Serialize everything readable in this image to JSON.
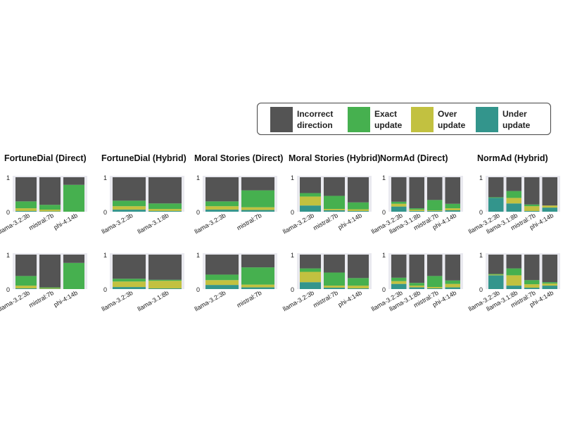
{
  "legend": {
    "placement": "top-right",
    "items": [
      {
        "label": "Incorrect\ndirection",
        "color": "#545454"
      },
      {
        "label": "Exact\nupdate",
        "color": "#46b04f"
      },
      {
        "label": "Over\nupdate",
        "color": "#c2c140"
      },
      {
        "label": "Under\nupdate",
        "color": "#33958c"
      }
    ]
  },
  "colors": {
    "incorrect": "#545454",
    "exact": "#46b04f",
    "over": "#c2c140",
    "under": "#33958c",
    "plot_bg": "#e9e9ef"
  },
  "chart_data": [
    {
      "type": "bar",
      "stacked": true,
      "row": 0,
      "col": 0,
      "title": "FortuneDial (Direct)",
      "ylim": [
        0,
        1
      ],
      "yticks": [
        "0",
        "1"
      ],
      "categories": [
        "llama-3.2:3b",
        "mistral:7b",
        "phi-4:14b"
      ],
      "series": [
        {
          "name": "Under update",
          "values": [
            0.02,
            0.01,
            0.0
          ]
        },
        {
          "name": "Over update",
          "values": [
            0.08,
            0.05,
            0.0
          ]
        },
        {
          "name": "Exact update",
          "values": [
            0.2,
            0.14,
            0.78
          ]
        },
        {
          "name": "Incorrect direction",
          "values": [
            0.7,
            0.8,
            0.22
          ]
        }
      ]
    },
    {
      "type": "bar",
      "stacked": true,
      "row": 0,
      "col": 1,
      "title": "FortuneDial (Hybrid)",
      "ylim": [
        0,
        1
      ],
      "yticks": [
        "0",
        "1"
      ],
      "categories": [
        "llama-3.2:3b",
        "llama-3.1:8b"
      ],
      "series": [
        {
          "name": "Under update",
          "values": [
            0.06,
            0.02
          ]
        },
        {
          "name": "Over update",
          "values": [
            0.1,
            0.06
          ]
        },
        {
          "name": "Exact update",
          "values": [
            0.16,
            0.16
          ]
        },
        {
          "name": "Incorrect direction",
          "values": [
            0.68,
            0.76
          ]
        }
      ]
    },
    {
      "type": "bar",
      "stacked": true,
      "row": 0,
      "col": 2,
      "title": "Moral Stories (Direct)",
      "ylim": [
        0,
        1
      ],
      "yticks": [
        "0",
        "1"
      ],
      "categories": [
        "llama-3.2:3b",
        "mistral:7b"
      ],
      "series": [
        {
          "name": "Under update",
          "values": [
            0.06,
            0.05
          ]
        },
        {
          "name": "Over update",
          "values": [
            0.1,
            0.08
          ]
        },
        {
          "name": "Exact update",
          "values": [
            0.14,
            0.49
          ]
        },
        {
          "name": "Incorrect direction",
          "values": [
            0.7,
            0.38
          ]
        }
      ]
    },
    {
      "type": "bar",
      "stacked": true,
      "row": 0,
      "col": 3,
      "title": "Moral Stories (Hybrid)",
      "ylim": [
        0,
        1
      ],
      "yticks": [
        "0",
        "1"
      ],
      "categories": [
        "llama-3.2:3b",
        "mistral:7b",
        "phi-4:14b"
      ],
      "series": [
        {
          "name": "Under update",
          "values": [
            0.18,
            0.04,
            0.02
          ]
        },
        {
          "name": "Over update",
          "values": [
            0.26,
            0.04,
            0.05
          ]
        },
        {
          "name": "Exact update",
          "values": [
            0.1,
            0.38,
            0.2
          ]
        },
        {
          "name": "Incorrect direction",
          "values": [
            0.46,
            0.54,
            0.73
          ]
        }
      ]
    },
    {
      "type": "bar",
      "stacked": true,
      "row": 0,
      "col": 4,
      "title": "NormAd (Direct)",
      "ylim": [
        0,
        1
      ],
      "yticks": [
        "0",
        "1"
      ],
      "categories": [
        "llama-3.2:3b",
        "llama-3.1:8b",
        "mistral:7b",
        "phi-4:14b"
      ],
      "series": [
        {
          "name": "Under update",
          "values": [
            0.15,
            0.02,
            0.02,
            0.04
          ]
        },
        {
          "name": "Over update",
          "values": [
            0.08,
            0.04,
            0.02,
            0.06
          ]
        },
        {
          "name": "Exact update",
          "values": [
            0.06,
            0.04,
            0.3,
            0.13
          ]
        },
        {
          "name": "Incorrect direction",
          "values": [
            0.71,
            0.9,
            0.66,
            0.77
          ]
        }
      ]
    },
    {
      "type": "bar",
      "stacked": true,
      "row": 0,
      "col": 5,
      "title": "NormAd (Hybrid)",
      "ylim": [
        0,
        1
      ],
      "yticks": [
        "0",
        "1"
      ],
      "categories": [
        "llama-3.2:3b",
        "llama-3.1:8b",
        "mistral:7b",
        "phi-4:14b"
      ],
      "series": [
        {
          "name": "Under update",
          "values": [
            0.4,
            0.24,
            0.02,
            0.12
          ]
        },
        {
          "name": "Over update",
          "values": [
            0.0,
            0.16,
            0.14,
            0.06
          ]
        },
        {
          "name": "Exact update",
          "values": [
            0.02,
            0.2,
            0.05,
            0.0
          ]
        },
        {
          "name": "Incorrect direction",
          "values": [
            0.58,
            0.4,
            0.79,
            0.82
          ]
        }
      ]
    },
    {
      "type": "bar",
      "stacked": true,
      "row": 1,
      "col": 0,
      "title": "",
      "ylim": [
        0,
        1
      ],
      "yticks": [
        "0",
        "1"
      ],
      "categories": [
        "llama-3.2:3b",
        "mistral:7b",
        "phi-4:14b"
      ],
      "series": [
        {
          "name": "Under update",
          "values": [
            0.02,
            0.01,
            0.0
          ]
        },
        {
          "name": "Over update",
          "values": [
            0.08,
            0.02,
            0.0
          ]
        },
        {
          "name": "Exact update",
          "values": [
            0.28,
            0.02,
            0.76
          ]
        },
        {
          "name": "Incorrect direction",
          "values": [
            0.62,
            0.95,
            0.24
          ]
        }
      ]
    },
    {
      "type": "bar",
      "stacked": true,
      "row": 1,
      "col": 1,
      "title": "",
      "ylim": [
        0,
        1
      ],
      "yticks": [
        "0",
        "1"
      ],
      "categories": [
        "llama-3.2:3b",
        "llama-3.1:8b"
      ],
      "series": [
        {
          "name": "Under update",
          "values": [
            0.06,
            0.02
          ]
        },
        {
          "name": "Over update",
          "values": [
            0.16,
            0.22
          ]
        },
        {
          "name": "Exact update",
          "values": [
            0.08,
            0.03
          ]
        },
        {
          "name": "Incorrect direction",
          "values": [
            0.7,
            0.73
          ]
        }
      ]
    },
    {
      "type": "bar",
      "stacked": true,
      "row": 1,
      "col": 2,
      "title": "",
      "ylim": [
        0,
        1
      ],
      "yticks": [
        "0",
        "1"
      ],
      "categories": [
        "llama-3.2:3b",
        "mistral:7b"
      ],
      "series": [
        {
          "name": "Under update",
          "values": [
            0.12,
            0.05
          ]
        },
        {
          "name": "Over update",
          "values": [
            0.14,
            0.08
          ]
        },
        {
          "name": "Exact update",
          "values": [
            0.16,
            0.5
          ]
        },
        {
          "name": "Incorrect direction",
          "values": [
            0.58,
            0.37
          ]
        }
      ]
    },
    {
      "type": "bar",
      "stacked": true,
      "row": 1,
      "col": 3,
      "title": "",
      "ylim": [
        0,
        1
      ],
      "yticks": [
        "0",
        "1"
      ],
      "categories": [
        "llama-3.2:3b",
        "mistral:7b",
        "phi-4:14b"
      ],
      "series": [
        {
          "name": "Under update",
          "values": [
            0.2,
            0.04,
            0.02
          ]
        },
        {
          "name": "Over update",
          "values": [
            0.3,
            0.06,
            0.08
          ]
        },
        {
          "name": "Exact update",
          "values": [
            0.1,
            0.38,
            0.22
          ]
        },
        {
          "name": "Incorrect direction",
          "values": [
            0.4,
            0.52,
            0.68
          ]
        }
      ]
    },
    {
      "type": "bar",
      "stacked": true,
      "row": 1,
      "col": 4,
      "title": "",
      "ylim": [
        0,
        1
      ],
      "yticks": [
        "0",
        "1"
      ],
      "categories": [
        "llama-3.2:3b",
        "llama-3.1:8b",
        "mistral:7b",
        "phi-4:14b"
      ],
      "series": [
        {
          "name": "Under update",
          "values": [
            0.15,
            0.05,
            0.02,
            0.05
          ]
        },
        {
          "name": "Over update",
          "values": [
            0.08,
            0.05,
            0.04,
            0.1
          ]
        },
        {
          "name": "Exact update",
          "values": [
            0.1,
            0.08,
            0.32,
            0.1
          ]
        },
        {
          "name": "Incorrect direction",
          "values": [
            0.67,
            0.82,
            0.62,
            0.75
          ]
        }
      ]
    },
    {
      "type": "bar",
      "stacked": true,
      "row": 1,
      "col": 5,
      "title": "",
      "ylim": [
        0,
        1
      ],
      "yticks": [
        "0",
        "1"
      ],
      "categories": [
        "llama-3.2:3b",
        "llama-3.1:8b",
        "mistral:7b",
        "phi-4:14b"
      ],
      "series": [
        {
          "name": "Under update",
          "values": [
            0.4,
            0.1,
            0.04,
            0.1
          ]
        },
        {
          "name": "Over update",
          "values": [
            0.02,
            0.3,
            0.1,
            0.06
          ]
        },
        {
          "name": "Exact update",
          "values": [
            0.02,
            0.2,
            0.12,
            0.04
          ]
        },
        {
          "name": "Incorrect direction",
          "values": [
            0.56,
            0.4,
            0.74,
            0.8
          ]
        }
      ]
    }
  ]
}
